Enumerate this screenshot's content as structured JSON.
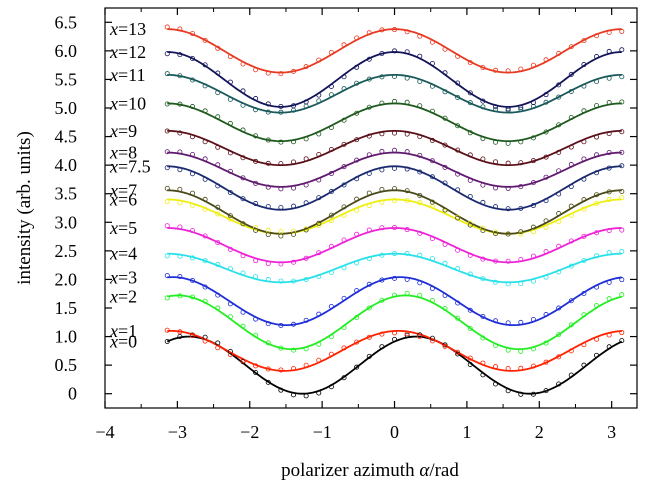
{
  "chart_data": {
    "type": "line",
    "title": "",
    "xlabel_prefix": "polarizer azimuth ",
    "xlabel_symbol": "α",
    "xlabel_suffix": "/rad",
    "ylabel": "intensity (arb. units)",
    "xlim": [
      -4,
      3.35
    ],
    "ylim": [
      -0.25,
      6.75
    ],
    "xticks": [
      -4,
      -3,
      -2,
      -1,
      0,
      1,
      2,
      3
    ],
    "xtick_labels": [
      "−4",
      "−3",
      "−2",
      "−1",
      "0",
      "1",
      "2",
      "3"
    ],
    "yticks": [
      0,
      0.5,
      1.0,
      1.5,
      2.0,
      2.5,
      3.0,
      3.5,
      4.0,
      4.5,
      5.0,
      5.5,
      6.0,
      6.5
    ],
    "ytick_labels": [
      "0",
      "0.5",
      "1.0",
      "1.5",
      "2.0",
      "2.5",
      "3.0",
      "3.5",
      "4.0",
      "4.5",
      "5.0",
      "5.5",
      "6.0",
      "6.5"
    ],
    "x_range": [
      -3.14,
      3.14
    ],
    "series": [
      {
        "name": "x=0",
        "label_var": "x",
        "label_val": "=0",
        "color": "#000000",
        "offset": 0.0,
        "amp": 0.0,
        "phase": 0.0,
        "y_at_start": 0.7,
        "min": 0.0,
        "max": 1.0,
        "note_x_min": -1.7,
        "note_x_max": 0.3
      },
      {
        "name": "x=1",
        "label_var": "x",
        "label_val": "=1",
        "color": "#ff2200",
        "offset": 0.75,
        "amp": 0.35,
        "phase": 0.1
      },
      {
        "name": "x=2",
        "label_var": "x",
        "label_val": "=2",
        "color": "#22ee22",
        "offset": 1.25,
        "amp": 0.47,
        "phase": 0.3
      },
      {
        "name": "x=3",
        "label_var": "x",
        "label_val": "=3",
        "color": "#1f2ed6",
        "offset": 1.62,
        "amp": 0.42,
        "phase": 0.15
      },
      {
        "name": "x=4",
        "label_var": "x",
        "label_val": "=4",
        "color": "#29e1e8",
        "offset": 2.2,
        "amp": 0.25,
        "phase": 0.0
      },
      {
        "name": "x=5",
        "label_var": "x",
        "label_val": "=5",
        "color": "#ee22d6",
        "offset": 2.6,
        "amp": 0.3,
        "phase": 0.0
      },
      {
        "name": "x=6",
        "label_var": "x",
        "label_val": "=6",
        "color": "#eeee11",
        "offset": 3.1,
        "amp": 0.3,
        "phase": 0.0
      },
      {
        "name": "x=7",
        "label_var": "x",
        "label_val": "=7",
        "color": "#4a4a1a",
        "offset": 3.18,
        "amp": 0.38,
        "phase": 0.0
      },
      {
        "name": "x=7.5",
        "label_var": "x",
        "label_val": "=7.5",
        "color": "#1a2a70",
        "offset": 3.6,
        "amp": 0.38,
        "phase": 0.0
      },
      {
        "name": "x=8",
        "label_var": "x",
        "label_val": "=8",
        "color": "#601a70",
        "offset": 3.92,
        "amp": 0.3,
        "phase": 0.0
      },
      {
        "name": "x=9",
        "label_var": "x",
        "label_val": "=9",
        "color": "#5a1018",
        "offset": 4.3,
        "amp": 0.3,
        "phase": 0.0
      },
      {
        "name": "x=10",
        "label_var": "x",
        "label_val": "=10",
        "color": "#1e5a1e",
        "offset": 4.75,
        "amp": 0.33,
        "phase": 0.0
      },
      {
        "name": "x=11",
        "label_var": "x",
        "label_val": "=11",
        "color": "#1a5a5a",
        "offset": 5.25,
        "amp": 0.33,
        "phase": 0.0
      },
      {
        "name": "x=12",
        "label_var": "x",
        "label_val": "=12",
        "color": "#14145a",
        "offset": 5.5,
        "amp": 0.48,
        "phase": 0.0
      },
      {
        "name": "x=13",
        "label_var": "x",
        "label_val": "=13",
        "color": "#e83a22",
        "offset": 6.0,
        "amp": 0.38,
        "phase": 0.0
      }
    ],
    "grid": false,
    "legend": "inline-left"
  }
}
